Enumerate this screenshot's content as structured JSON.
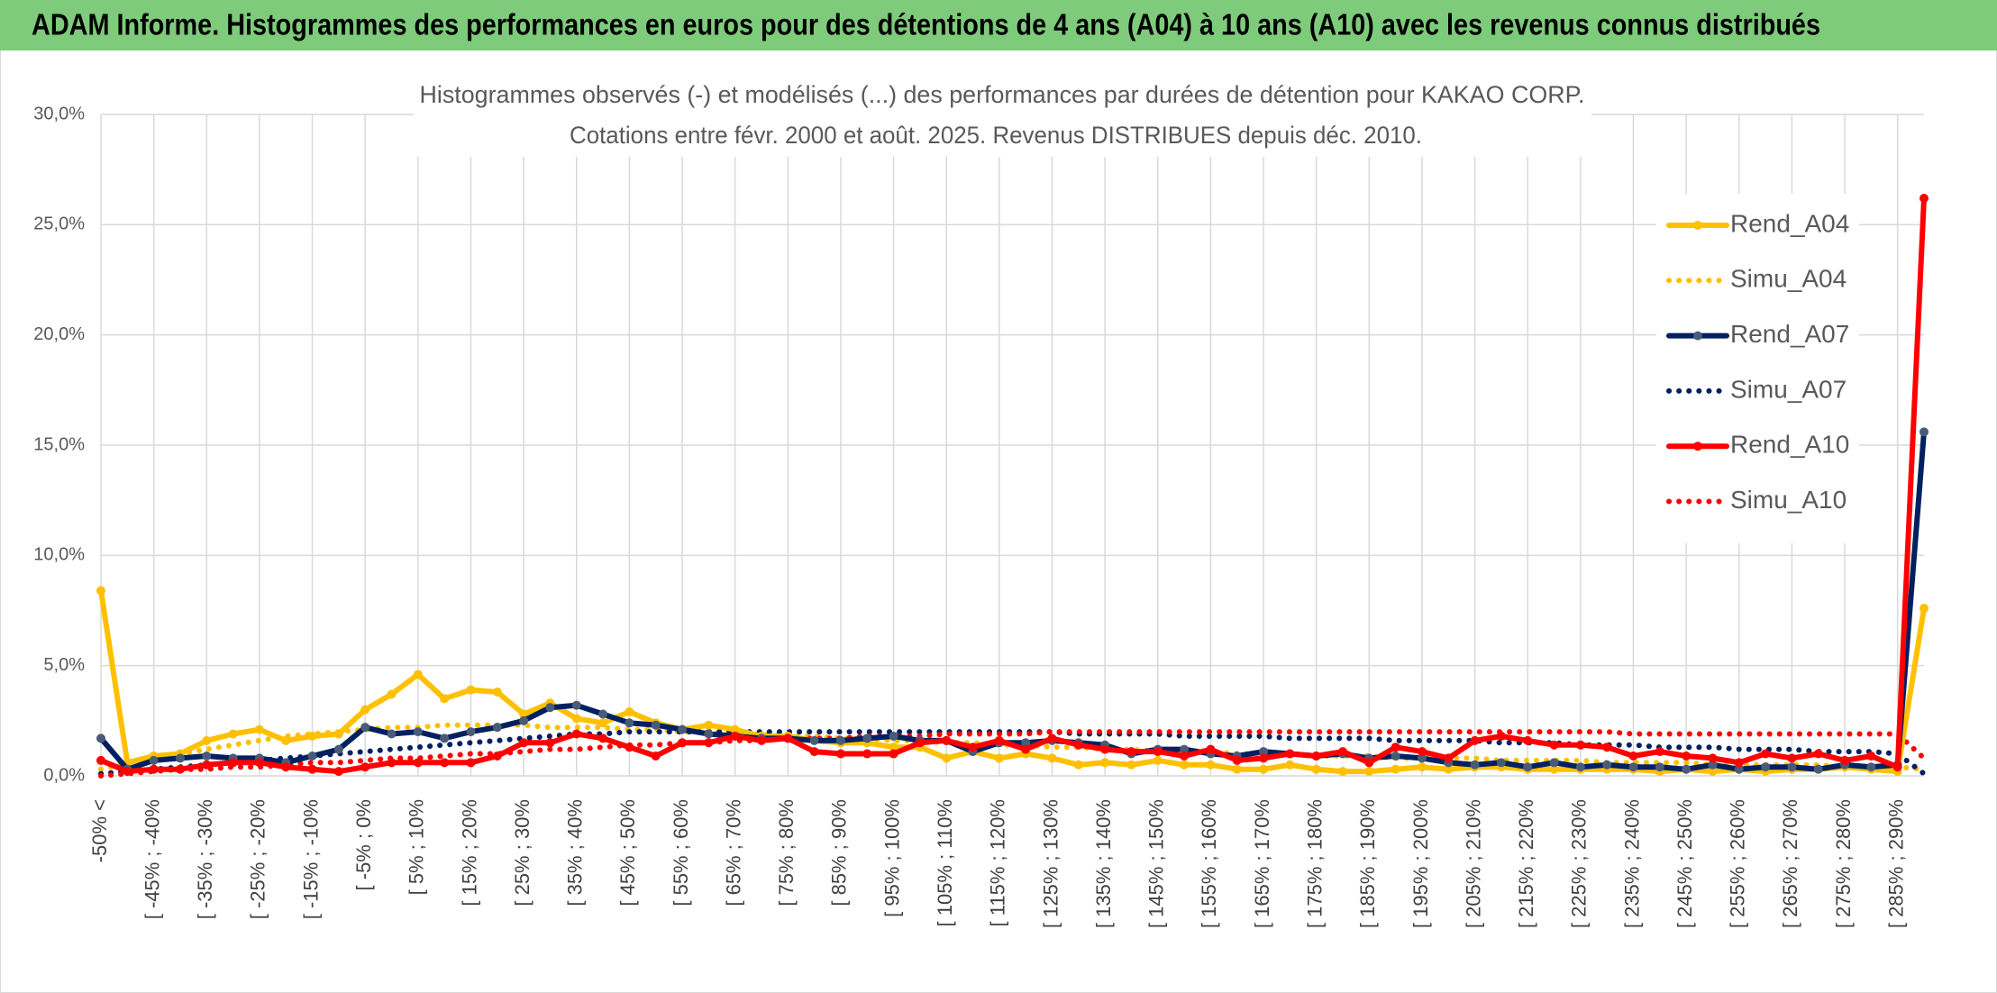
{
  "header": {
    "title": "ADAM Informe. Histogrammes des performances en euros pour des détentions de 4 ans (A04) à 10 ans (A10) avec les revenus connus distribués"
  },
  "chart_data": {
    "type": "line",
    "title": "Histogrammes observés (-) et modélisés (...) des performances par durées de détention pour KAKAO CORP.",
    "subtitle": "Cotations entre févr. 2000 et août. 2025. Revenus DISTRIBUES depuis déc. 2010.",
    "categories": [
      "-50% <",
      null,
      "[ -45% ; -40%",
      null,
      "[ -35% ; -30%",
      null,
      "[ -25% ; -20%",
      null,
      "[ -15% ; -10%",
      null,
      "[ -5% ; 0%",
      null,
      "[ 5% ; 10%",
      null,
      "[ 15% ; 20%",
      null,
      "[ 25% ; 30%",
      null,
      "[ 35% ; 40%",
      null,
      "[ 45% ; 50%",
      null,
      "[ 55% ; 60%",
      null,
      "[ 65% ; 70%",
      null,
      "[ 75% ; 80%",
      null,
      "[ 85% ; 90%",
      null,
      "[ 95% ; 100%",
      null,
      "[ 105% ; 110%",
      null,
      "[ 115% ; 120%",
      null,
      "[ 125% ; 130%",
      null,
      "[ 135% ; 140%",
      null,
      "[ 145% ; 150%",
      null,
      "[ 155% ; 160%",
      null,
      "[ 165% ; 170%",
      null,
      "[ 175% ; 180%",
      null,
      "[ 185% ; 190%",
      null,
      "[ 195% ; 200%",
      null,
      "[ 205% ; 210%",
      null,
      "[ 215% ; 220%",
      null,
      "[ 225% ; 230%",
      null,
      "[ 235% ; 240%",
      null,
      "[ 245% ; 250%",
      null,
      "[ 255% ; 260%",
      null,
      "[ 265% ; 270%",
      null,
      "[ 275% ; 280%",
      null,
      "[ 285% ; 290%",
      null
    ],
    "ylim": [
      0,
      30
    ],
    "yticks": [
      {
        "value": 0,
        "label": "0,0%"
      },
      {
        "value": 5,
        "label": "5,0%"
      },
      {
        "value": 10,
        "label": "10,0%"
      },
      {
        "value": 15,
        "label": "15,0%"
      },
      {
        "value": 20,
        "label": "20,0%"
      },
      {
        "value": 25,
        "label": "25,0%"
      },
      {
        "value": 30,
        "label": "30,0%"
      }
    ],
    "grid": true,
    "legend": "right",
    "series": [
      {
        "name": "Rend_A04",
        "color": "#ffc000",
        "marker_color": "#ffc000",
        "line_style": "solid",
        "values": [
          8.4,
          0.6,
          0.9,
          1.0,
          1.6,
          1.9,
          2.1,
          1.6,
          1.8,
          1.9,
          3.0,
          3.7,
          4.6,
          3.5,
          3.9,
          3.8,
          2.8,
          3.3,
          2.6,
          2.4,
          2.9,
          2.4,
          2.1,
          2.3,
          2.1,
          1.8,
          1.8,
          1.6,
          1.5,
          1.5,
          1.3,
          1.3,
          0.8,
          1.1,
          0.8,
          1.0,
          0.8,
          0.5,
          0.6,
          0.5,
          0.7,
          0.5,
          0.5,
          0.3,
          0.3,
          0.5,
          0.3,
          0.2,
          0.2,
          0.3,
          0.4,
          0.3,
          0.4,
          0.4,
          0.3,
          0.3,
          0.3,
          0.3,
          0.3,
          0.2,
          0.3,
          0.2,
          0.3,
          0.2,
          0.3,
          0.3,
          0.4,
          0.3,
          0.2,
          7.6
        ]
      },
      {
        "name": "Simu_A04",
        "color": "#ffc000",
        "line_style": "dotted",
        "values": [
          0.3,
          0.6,
          0.8,
          1.0,
          1.2,
          1.4,
          1.6,
          1.8,
          1.9,
          2.0,
          2.1,
          2.2,
          2.2,
          2.3,
          2.3,
          2.3,
          2.3,
          2.2,
          2.2,
          2.2,
          2.1,
          2.1,
          2.0,
          2.0,
          1.9,
          1.9,
          1.8,
          1.8,
          1.7,
          1.7,
          1.6,
          1.6,
          1.5,
          1.5,
          1.4,
          1.4,
          1.3,
          1.3,
          1.2,
          1.2,
          1.1,
          1.1,
          1.1,
          1.0,
          1.0,
          1.0,
          0.9,
          0.9,
          0.9,
          0.8,
          0.8,
          0.8,
          0.8,
          0.7,
          0.7,
          0.7,
          0.7,
          0.6,
          0.6,
          0.6,
          0.6,
          0.5,
          0.5,
          0.5,
          0.5,
          0.5,
          0.4,
          0.4,
          0.4,
          0.3
        ]
      },
      {
        "name": "Rend_A07",
        "color": "#002060",
        "marker_color": "#4a5b78",
        "line_style": "solid",
        "values": [
          1.7,
          0.3,
          0.7,
          0.8,
          0.9,
          0.8,
          0.8,
          0.6,
          0.9,
          1.2,
          2.2,
          1.9,
          2.0,
          1.7,
          2.0,
          2.2,
          2.5,
          3.1,
          3.2,
          2.8,
          2.4,
          2.3,
          2.1,
          1.9,
          1.8,
          1.7,
          1.7,
          1.6,
          1.6,
          1.7,
          1.8,
          1.6,
          1.6,
          1.1,
          1.5,
          1.5,
          1.6,
          1.5,
          1.4,
          1.0,
          1.2,
          1.2,
          1.0,
          0.9,
          1.1,
          1.0,
          0.9,
          1.0,
          0.8,
          0.9,
          0.8,
          0.6,
          0.5,
          0.6,
          0.4,
          0.6,
          0.4,
          0.5,
          0.4,
          0.4,
          0.3,
          0.5,
          0.3,
          0.4,
          0.4,
          0.3,
          0.5,
          0.4,
          0.5,
          15.6
        ]
      },
      {
        "name": "Simu_A07",
        "color": "#002060",
        "line_style": "dotted",
        "values": [
          0.1,
          0.2,
          0.3,
          0.4,
          0.5,
          0.6,
          0.7,
          0.8,
          0.9,
          1.0,
          1.1,
          1.2,
          1.3,
          1.4,
          1.5,
          1.6,
          1.7,
          1.8,
          1.9,
          1.9,
          2.0,
          2.0,
          2.0,
          2.0,
          2.0,
          2.0,
          2.0,
          2.0,
          2.0,
          2.0,
          2.0,
          2.0,
          2.0,
          2.0,
          2.0,
          2.0,
          2.0,
          1.9,
          1.9,
          1.9,
          1.9,
          1.8,
          1.8,
          1.8,
          1.8,
          1.7,
          1.7,
          1.7,
          1.7,
          1.6,
          1.6,
          1.6,
          1.6,
          1.5,
          1.5,
          1.5,
          1.4,
          1.4,
          1.4,
          1.3,
          1.3,
          1.3,
          1.2,
          1.2,
          1.2,
          1.1,
          1.1,
          1.1,
          1.0,
          0.1
        ]
      },
      {
        "name": "Rend_A10",
        "color": "#ff0000",
        "marker_color": "#ff0000",
        "line_style": "solid",
        "values": [
          0.7,
          0.2,
          0.3,
          0.3,
          0.5,
          0.6,
          0.6,
          0.4,
          0.3,
          0.2,
          0.4,
          0.6,
          0.6,
          0.6,
          0.6,
          0.9,
          1.5,
          1.5,
          1.9,
          1.7,
          1.3,
          0.9,
          1.5,
          1.5,
          1.8,
          1.6,
          1.7,
          1.1,
          1.0,
          1.0,
          1.0,
          1.5,
          1.6,
          1.3,
          1.6,
          1.2,
          1.7,
          1.4,
          1.2,
          1.1,
          1.1,
          0.9,
          1.2,
          0.7,
          0.8,
          1.0,
          0.9,
          1.1,
          0.6,
          1.3,
          1.1,
          0.8,
          1.6,
          1.8,
          1.6,
          1.4,
          1.4,
          1.3,
          0.9,
          1.1,
          0.9,
          0.8,
          0.6,
          1.0,
          0.8,
          1.0,
          0.7,
          0.9,
          0.4,
          26.2
        ]
      },
      {
        "name": "Simu_A10",
        "color": "#ff0000",
        "line_style": "dotted",
        "values": [
          0.0,
          0.1,
          0.2,
          0.3,
          0.3,
          0.4,
          0.4,
          0.5,
          0.6,
          0.6,
          0.7,
          0.8,
          0.8,
          0.9,
          1.0,
          1.0,
          1.1,
          1.2,
          1.2,
          1.3,
          1.4,
          1.4,
          1.5,
          1.5,
          1.6,
          1.6,
          1.7,
          1.7,
          1.7,
          1.8,
          1.8,
          1.8,
          1.9,
          1.9,
          1.9,
          1.9,
          2.0,
          2.0,
          2.0,
          2.0,
          2.0,
          2.0,
          2.0,
          2.0,
          2.0,
          2.0,
          2.0,
          2.0,
          2.0,
          2.0,
          2.0,
          2.0,
          2.0,
          2.0,
          2.0,
          2.0,
          2.0,
          2.0,
          1.9,
          1.9,
          1.9,
          1.9,
          1.9,
          1.9,
          1.9,
          1.9,
          1.9,
          1.9,
          1.9,
          0.8
        ]
      }
    ]
  }
}
